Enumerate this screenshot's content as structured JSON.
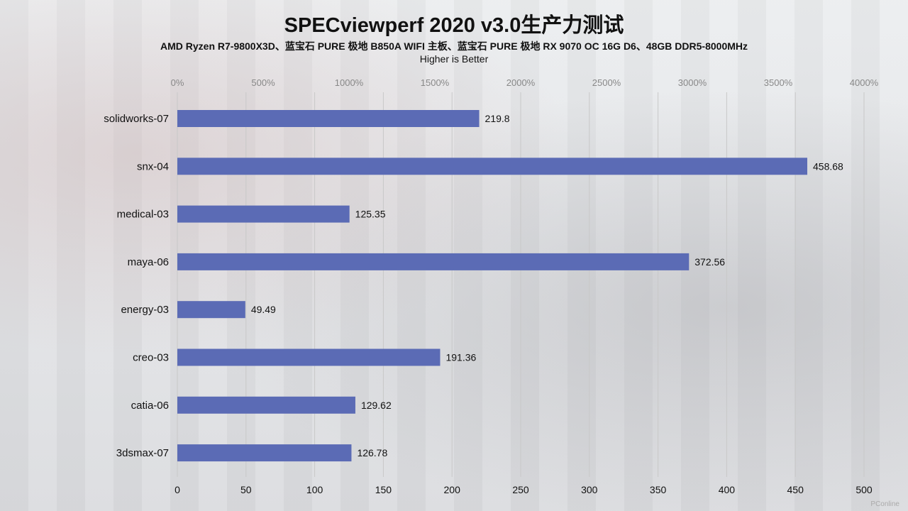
{
  "title": "SPECviewperf 2020 v3.0生产力测试",
  "subtitle": "AMD Ryzen R7-9800X3D、蓝宝石 PURE 极地 B850A WIFI 主板、蓝宝石 PURE 极地 RX 9070 OC 16G D6、48GB DDR5-8000MHz",
  "note": "Higher is Better",
  "watermark": "PConline",
  "chart_data": {
    "type": "bar",
    "orientation": "horizontal",
    "categories": [
      "solidworks-07",
      "snx-04",
      "medical-03",
      "maya-06",
      "energy-03",
      "creo-03",
      "catia-06",
      "3dsmax-07"
    ],
    "values": [
      219.8,
      458.68,
      125.35,
      372.56,
      49.49,
      191.36,
      129.62,
      126.78
    ],
    "value_labels": [
      "219.8",
      "458.68",
      "125.35",
      "372.56",
      "49.49",
      "191.36",
      "129.62",
      "126.78"
    ],
    "xlim": [
      0,
      500
    ],
    "x_ticks": [
      0,
      50,
      100,
      150,
      200,
      250,
      300,
      350,
      400,
      450,
      500
    ],
    "x_tick_labels": [
      "0",
      "50",
      "100",
      "150",
      "200",
      "250",
      "300",
      "350",
      "400",
      "450",
      "500"
    ],
    "top_axis_ticks": [
      "0%",
      "500%",
      "1000%",
      "1500%",
      "2000%",
      "2500%",
      "3000%",
      "3500%",
      "4000%"
    ],
    "bar_color": "#5b6bb5",
    "grid": true,
    "gridline_color": "#c8c8c8"
  }
}
